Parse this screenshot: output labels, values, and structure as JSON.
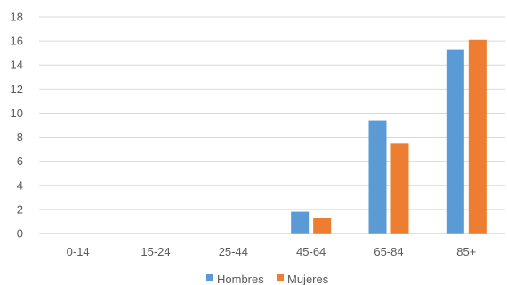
{
  "chart_data": {
    "type": "bar",
    "categories": [
      "0-14",
      "15-24",
      "25-44",
      "45-64",
      "65-84",
      "85+"
    ],
    "series": [
      {
        "name": "Hombres",
        "color": "#5B9BD5",
        "values": [
          0,
          0,
          0,
          1.8,
          9.4,
          15.3
        ]
      },
      {
        "name": "Mujeres",
        "color": "#ED7D31",
        "values": [
          0,
          0,
          0,
          1.3,
          7.5,
          16.1
        ]
      }
    ],
    "ylim": [
      0,
      18
    ],
    "yticks": [
      0,
      2,
      4,
      6,
      8,
      10,
      12,
      14,
      16,
      18
    ],
    "grid": true,
    "legend_position": "bottom",
    "gridline_color": "#D9D9D9",
    "axis_line_color": "#BFBFBF"
  }
}
